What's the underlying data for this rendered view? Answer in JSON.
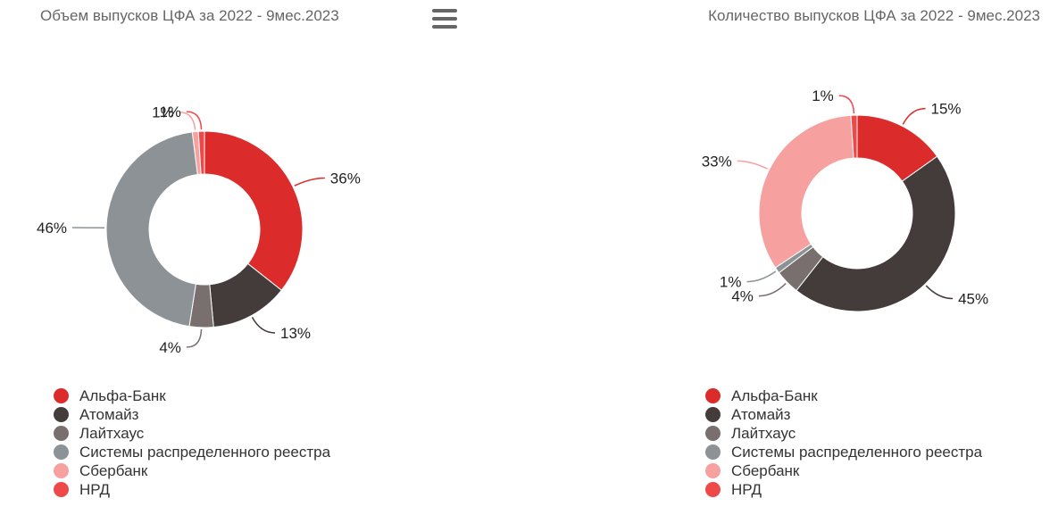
{
  "menu": {
    "icon": "hamburger-menu-icon"
  },
  "colors": {
    "Альфа-Банк": "#dc2b2b",
    "Атомайз": "#443b3b",
    "Лайтхаус": "#796f6f",
    "Системы распределенного реестра": "#8c9296",
    "Сбербанк": "#f7a0a0",
    "НРД": "#ef4848"
  },
  "chart_data": [
    {
      "type": "pie",
      "title": "Объем выпусков ЦФА за 2022 - 9мес.2023",
      "categories": [
        "Альфа-Банк",
        "Атомайз",
        "Лайтхаус",
        "Системы распределенного реестра",
        "Сбербанк",
        "НРД"
      ],
      "values": [
        36,
        13,
        4,
        46,
        1,
        1
      ],
      "labels": [
        "36%",
        "13%",
        "4%",
        "46%",
        "1%",
        "1%"
      ],
      "legend": "bottom-left"
    },
    {
      "type": "pie",
      "title": "Количество выпусков ЦФА за 2022 - 9мес.2023",
      "categories": [
        "Альфа-Банк",
        "Атомайз",
        "Лайтхаус",
        "Системы распределенного реестра",
        "Сбербанк",
        "НРД"
      ],
      "values": [
        15,
        45,
        4,
        1,
        33,
        1
      ],
      "labels": [
        "15%",
        "45%",
        "4%",
        "1%",
        "33%",
        "1%"
      ],
      "legend": "bottom-left"
    }
  ]
}
